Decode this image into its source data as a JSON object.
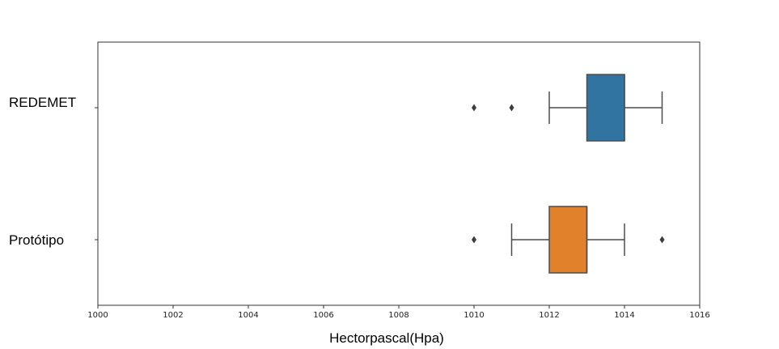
{
  "chart_data": {
    "type": "boxplot",
    "orientation": "horizontal",
    "xlabel": "Hectorpascal(Hpa)",
    "ylabel": "",
    "xlim": [
      1000,
      1016
    ],
    "xticks": [
      1000,
      1002,
      1004,
      1006,
      1008,
      1010,
      1012,
      1014,
      1016
    ],
    "grid": false,
    "series": [
      {
        "name": "REDEMET",
        "color": "#3274a1",
        "whisker_low": 1012,
        "q1": 1013,
        "median": 1014,
        "q3": 1014,
        "whisker_high": 1015,
        "outliers": [
          1010,
          1011
        ]
      },
      {
        "name": "Protótipo",
        "color": "#e1812c",
        "whisker_low": 1011,
        "q1": 1012,
        "median": 1013,
        "q3": 1013,
        "whisker_high": 1014,
        "outliers": [
          1010,
          1015
        ]
      }
    ]
  }
}
